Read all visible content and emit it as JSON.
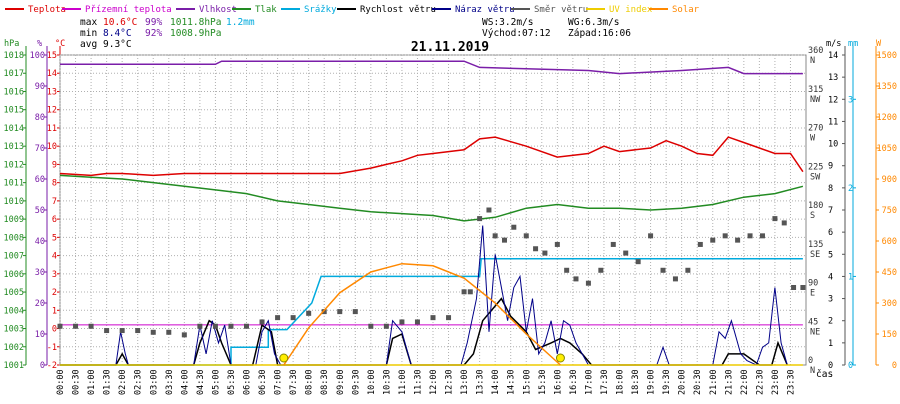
{
  "legend": [
    {
      "label": "Teplota",
      "color": "#dd0000"
    },
    {
      "label": "Přízemní teplota",
      "color": "#cc00cc"
    },
    {
      "label": "Vlhkost",
      "color": "#7a1ea8"
    },
    {
      "label": "Tlak",
      "color": "#228b22"
    },
    {
      "label": "Srážky",
      "color": "#00aadd"
    },
    {
      "label": "Rychlost větru",
      "color": "#000000"
    },
    {
      "label": "Náraz větru",
      "color": "#000088"
    },
    {
      "label": "Směr větru",
      "color": "#555555"
    },
    {
      "label": "UV index",
      "color": "#eecc00"
    },
    {
      "label": "Solar",
      "color": "#ff8800"
    }
  ],
  "stats": {
    "max_label": "max",
    "max_temp": "10.6°C",
    "max_hum": "99%",
    "max_press": "1011.8hPa",
    "total_rain": "1.2mm",
    "min_label": "min",
    "min_temp": "8.4°C",
    "min_hum": "92%",
    "min_press": "1008.9hPa",
    "avg_label": "avg",
    "avg_temp": "9.3°C",
    "ws": "WS:3.2m/s",
    "wg": "WG:6.3m/s",
    "sunrise": "Východ:07:12",
    "sunset": "Západ:16:06"
  },
  "colors": {
    "temp": "#dd0000",
    "ground": "#cc00cc",
    "hum": "#7a1ea8",
    "press": "#228b22",
    "rain": "#00aadd",
    "wind": "#000000",
    "gust": "#000088",
    "dir": "#555555",
    "uv": "#eecc00",
    "solar": "#ff8800",
    "grid": "#b0b0b0"
  },
  "chart_data": {
    "type": "line",
    "title": "21.11.2019",
    "xlabel": "čas",
    "x_ticks": [
      "00:00",
      "00:30",
      "01:00",
      "01:30",
      "02:00",
      "02:30",
      "03:00",
      "03:30",
      "04:00",
      "04:30",
      "05:00",
      "05:30",
      "06:00",
      "06:30",
      "07:00",
      "07:30",
      "08:00",
      "08:30",
      "09:00",
      "09:30",
      "10:00",
      "10:30",
      "11:00",
      "11:30",
      "12:00",
      "12:30",
      "13:00",
      "13:30",
      "14:00",
      "14:30",
      "15:00",
      "15:30",
      "16:00",
      "16:30",
      "17:00",
      "17:30",
      "18:00",
      "18:30",
      "19:00",
      "19:30",
      "20:00",
      "20:30",
      "21:00",
      "21:30",
      "22:00",
      "22:30",
      "23:00",
      "23:30"
    ],
    "axes": {
      "press": {
        "unit": "hPa",
        "ticks": [
          "1001",
          "1002",
          "1003",
          "1004",
          "1005",
          "1006",
          "1007",
          "1008",
          "1009",
          "1010",
          "1011",
          "1012",
          "1013",
          "1014",
          "1015",
          "1016",
          "1017",
          "1018"
        ]
      },
      "hum": {
        "unit": "%",
        "ticks": [
          "0",
          "10",
          "20",
          "30",
          "40",
          "50",
          "60",
          "70",
          "80",
          "90",
          "100"
        ]
      },
      "temp": {
        "unit": "°C",
        "ticks": [
          "-2",
          "-1",
          "0",
          "1",
          "2",
          "3",
          "4",
          "5",
          "6",
          "7",
          "8",
          "9",
          "10",
          "11",
          "12",
          "13",
          "14",
          "15"
        ]
      },
      "dir": {
        "ticks": [
          {
            "deg": "0",
            "name": "N"
          },
          {
            "deg": "45",
            "name": "NE"
          },
          {
            "deg": "90",
            "name": "E"
          },
          {
            "deg": "135",
            "name": "SE"
          },
          {
            "deg": "180",
            "name": "S"
          },
          {
            "deg": "225",
            "name": "SW"
          },
          {
            "deg": "270",
            "name": "W"
          },
          {
            "deg": "315",
            "name": "NW"
          },
          {
            "deg": "360",
            "name": "N"
          }
        ]
      },
      "wind": {
        "unit": "m/s",
        "ticks": [
          "0",
          "1",
          "2",
          "3",
          "4",
          "5",
          "6",
          "7",
          "8",
          "9",
          "10",
          "11",
          "12",
          "13",
          "14"
        ]
      },
      "rain": {
        "unit": "mm",
        "ticks": [
          "0",
          "1",
          "2",
          "3"
        ]
      },
      "solar": {
        "unit": "W",
        "ticks": [
          "0",
          "150",
          "300",
          "450",
          "600",
          "750",
          "900",
          "1050",
          "1200",
          "1350",
          "1500"
        ]
      }
    },
    "series": [
      {
        "name": "Teplota",
        "axis": "temp",
        "x": [
          0,
          1,
          1.5,
          2,
          3,
          4,
          5,
          6,
          7,
          8,
          9,
          10,
          10.5,
          11,
          11.5,
          12,
          13,
          13.5,
          14,
          15,
          16,
          17,
          17.5,
          18,
          19,
          19.5,
          20,
          20.5,
          21,
          21.5,
          22,
          22.5,
          23,
          23.5,
          23.9
        ],
        "y": [
          8.5,
          8.4,
          8.5,
          8.5,
          8.4,
          8.5,
          8.5,
          8.5,
          8.5,
          8.5,
          8.5,
          8.8,
          9.0,
          9.2,
          9.5,
          9.6,
          9.8,
          10.4,
          10.5,
          10.0,
          9.4,
          9.6,
          10.0,
          9.7,
          9.9,
          10.3,
          10.0,
          9.6,
          9.5,
          10.5,
          10.2,
          9.9,
          9.6,
          9.6,
          8.6
        ]
      },
      {
        "name": "Přízemní teplota",
        "axis": "temp",
        "x": [
          0,
          23.9
        ],
        "y": [
          0.2,
          0.2
        ]
      },
      {
        "name": "Vlhkost",
        "axis": "hum",
        "x": [
          0,
          5,
          5.2,
          13,
          13.5,
          17,
          18,
          20,
          21.5,
          22,
          23,
          23.9
        ],
        "y": [
          97,
          97,
          98,
          98,
          96,
          95,
          94,
          95,
          96,
          94,
          94,
          94
        ]
      },
      {
        "name": "Tlak",
        "axis": "press",
        "x": [
          0,
          1,
          2,
          3,
          4,
          5,
          6,
          7,
          8,
          9,
          10,
          11,
          12,
          13,
          14,
          15,
          16,
          17,
          18,
          19,
          20,
          21,
          22,
          23,
          23.9
        ],
        "y": [
          1011.4,
          1011.3,
          1011.2,
          1011.0,
          1010.8,
          1010.6,
          1010.4,
          1010.0,
          1009.8,
          1009.6,
          1009.4,
          1009.3,
          1009.2,
          1008.9,
          1009.1,
          1009.6,
          1009.8,
          1009.6,
          1009.6,
          1009.5,
          1009.6,
          1009.8,
          1010.2,
          1010.4,
          1010.8
        ]
      },
      {
        "name": "Srážky",
        "axis": "rain",
        "x": [
          0,
          5.5,
          5.5,
          6.7,
          6.7,
          7.3,
          7.3,
          8.1,
          8.4,
          8.6,
          13.5,
          13.55,
          13.6,
          23.9
        ],
        "y": [
          0,
          0,
          0.2,
          0.2,
          0.4,
          0.4,
          0.4,
          0.7,
          1.0,
          1.0,
          1.0,
          1.2,
          1.2,
          1.2
        ]
      },
      {
        "name": "Rychlost větru",
        "axis": "wind",
        "x": [
          0,
          1.8,
          2.0,
          2.2,
          4.3,
          4.5,
          4.8,
          5.0,
          5.2,
          5.5,
          6.2,
          6.5,
          6.8,
          7.0,
          7.2,
          10.5,
          10.7,
          11.0,
          11.3,
          13.0,
          13.3,
          13.6,
          13.9,
          14.2,
          14.5,
          15.0,
          15.3,
          15.8,
          16.1,
          16.4,
          16.8,
          17.1,
          21.3,
          21.5,
          21.8,
          22.0,
          22.5,
          22.9,
          23.1,
          23.4
        ],
        "y": [
          0,
          0,
          0.5,
          0,
          0,
          1,
          2,
          1.8,
          1,
          0,
          0,
          1.8,
          1.5,
          0,
          0,
          0,
          1.2,
          1.4,
          0,
          0,
          0.5,
          2,
          2.5,
          3,
          2.2,
          1.5,
          0.7,
          1.0,
          1.2,
          1.0,
          0.5,
          0,
          0,
          0.5,
          0.5,
          0.5,
          0,
          0,
          1,
          0
        ]
      },
      {
        "name": "Náraz větru",
        "axis": "wind",
        "x": [
          0,
          1.8,
          1.95,
          2.1,
          2.2,
          4.3,
          4.5,
          4.7,
          4.9,
          5.1,
          5.3,
          5.5,
          6.3,
          6.5,
          6.7,
          6.9,
          7.1,
          10.5,
          10.7,
          11.0,
          11.3,
          12.9,
          13.1,
          13.4,
          13.6,
          13.8,
          14.0,
          14.2,
          14.4,
          14.6,
          14.8,
          15.0,
          15.2,
          15.4,
          15.6,
          15.8,
          16.0,
          16.2,
          16.4,
          16.6,
          16.8,
          17.0,
          19.2,
          19.4,
          19.6,
          21.0,
          21.2,
          21.4,
          21.6,
          21.9,
          22.1,
          22.4,
          22.6,
          22.8,
          23.0,
          23.2,
          23.4
        ],
        "y": [
          0,
          0,
          1.5,
          0.5,
          0,
          0,
          1.8,
          0.5,
          2,
          1,
          1.8,
          0,
          0,
          1.5,
          2,
          0.5,
          0,
          0,
          2,
          1.5,
          0,
          0,
          1,
          3,
          6.3,
          1.5,
          5,
          3.5,
          2,
          3.5,
          4,
          1.5,
          3,
          0.5,
          1,
          2,
          0.5,
          2,
          1.8,
          1,
          0.5,
          0,
          0,
          0.8,
          0,
          0,
          1.5,
          1.2,
          2,
          0.5,
          0.2,
          0,
          0.8,
          1,
          3.5,
          1,
          0
        ]
      },
      {
        "name": "Směr větru",
        "axis": "dir",
        "x": [
          0,
          0.5,
          1,
          1.5,
          2,
          2.5,
          3,
          3.5,
          4,
          4.5,
          5,
          5.5,
          6,
          6.5,
          7,
          7.5,
          8,
          8.5,
          9,
          9.5,
          10,
          10.5,
          11,
          11.5,
          12,
          12.5,
          13,
          13.2,
          13.5,
          13.8,
          14.0,
          14.3,
          14.6,
          15.0,
          15.3,
          15.6,
          16.0,
          16.3,
          16.6,
          17.0,
          17.4,
          17.8,
          18.2,
          18.6,
          19.0,
          19.4,
          19.8,
          20.2,
          20.6,
          21.0,
          21.4,
          21.8,
          22.2,
          22.6,
          23.0,
          23.3,
          23.6,
          23.9
        ],
        "y": [
          45,
          45,
          45,
          40,
          40,
          40,
          38,
          38,
          35,
          45,
          45,
          45,
          45,
          50,
          55,
          55,
          60,
          62,
          62,
          62,
          45,
          45,
          50,
          50,
          55,
          55,
          85,
          85,
          170,
          180,
          150,
          145,
          160,
          150,
          135,
          130,
          140,
          110,
          100,
          95,
          110,
          140,
          130,
          120,
          150,
          110,
          100,
          110,
          140,
          145,
          150,
          145,
          150,
          150,
          170,
          165,
          90,
          90
        ]
      },
      {
        "name": "UV index",
        "axis": "solar",
        "x": [
          0,
          23.9
        ],
        "y": [
          0,
          0
        ]
      },
      {
        "name": "Solar",
        "axis": "solar",
        "x": [
          7.2,
          8,
          9,
          10,
          11,
          12,
          13,
          14,
          15,
          16.1
        ],
        "y": [
          0,
          180,
          350,
          450,
          490,
          480,
          420,
          300,
          150,
          0
        ]
      }
    ],
    "markers": [
      {
        "name": "sunrise",
        "time": "07:12"
      },
      {
        "name": "sunset",
        "time": "16:06"
      }
    ]
  }
}
